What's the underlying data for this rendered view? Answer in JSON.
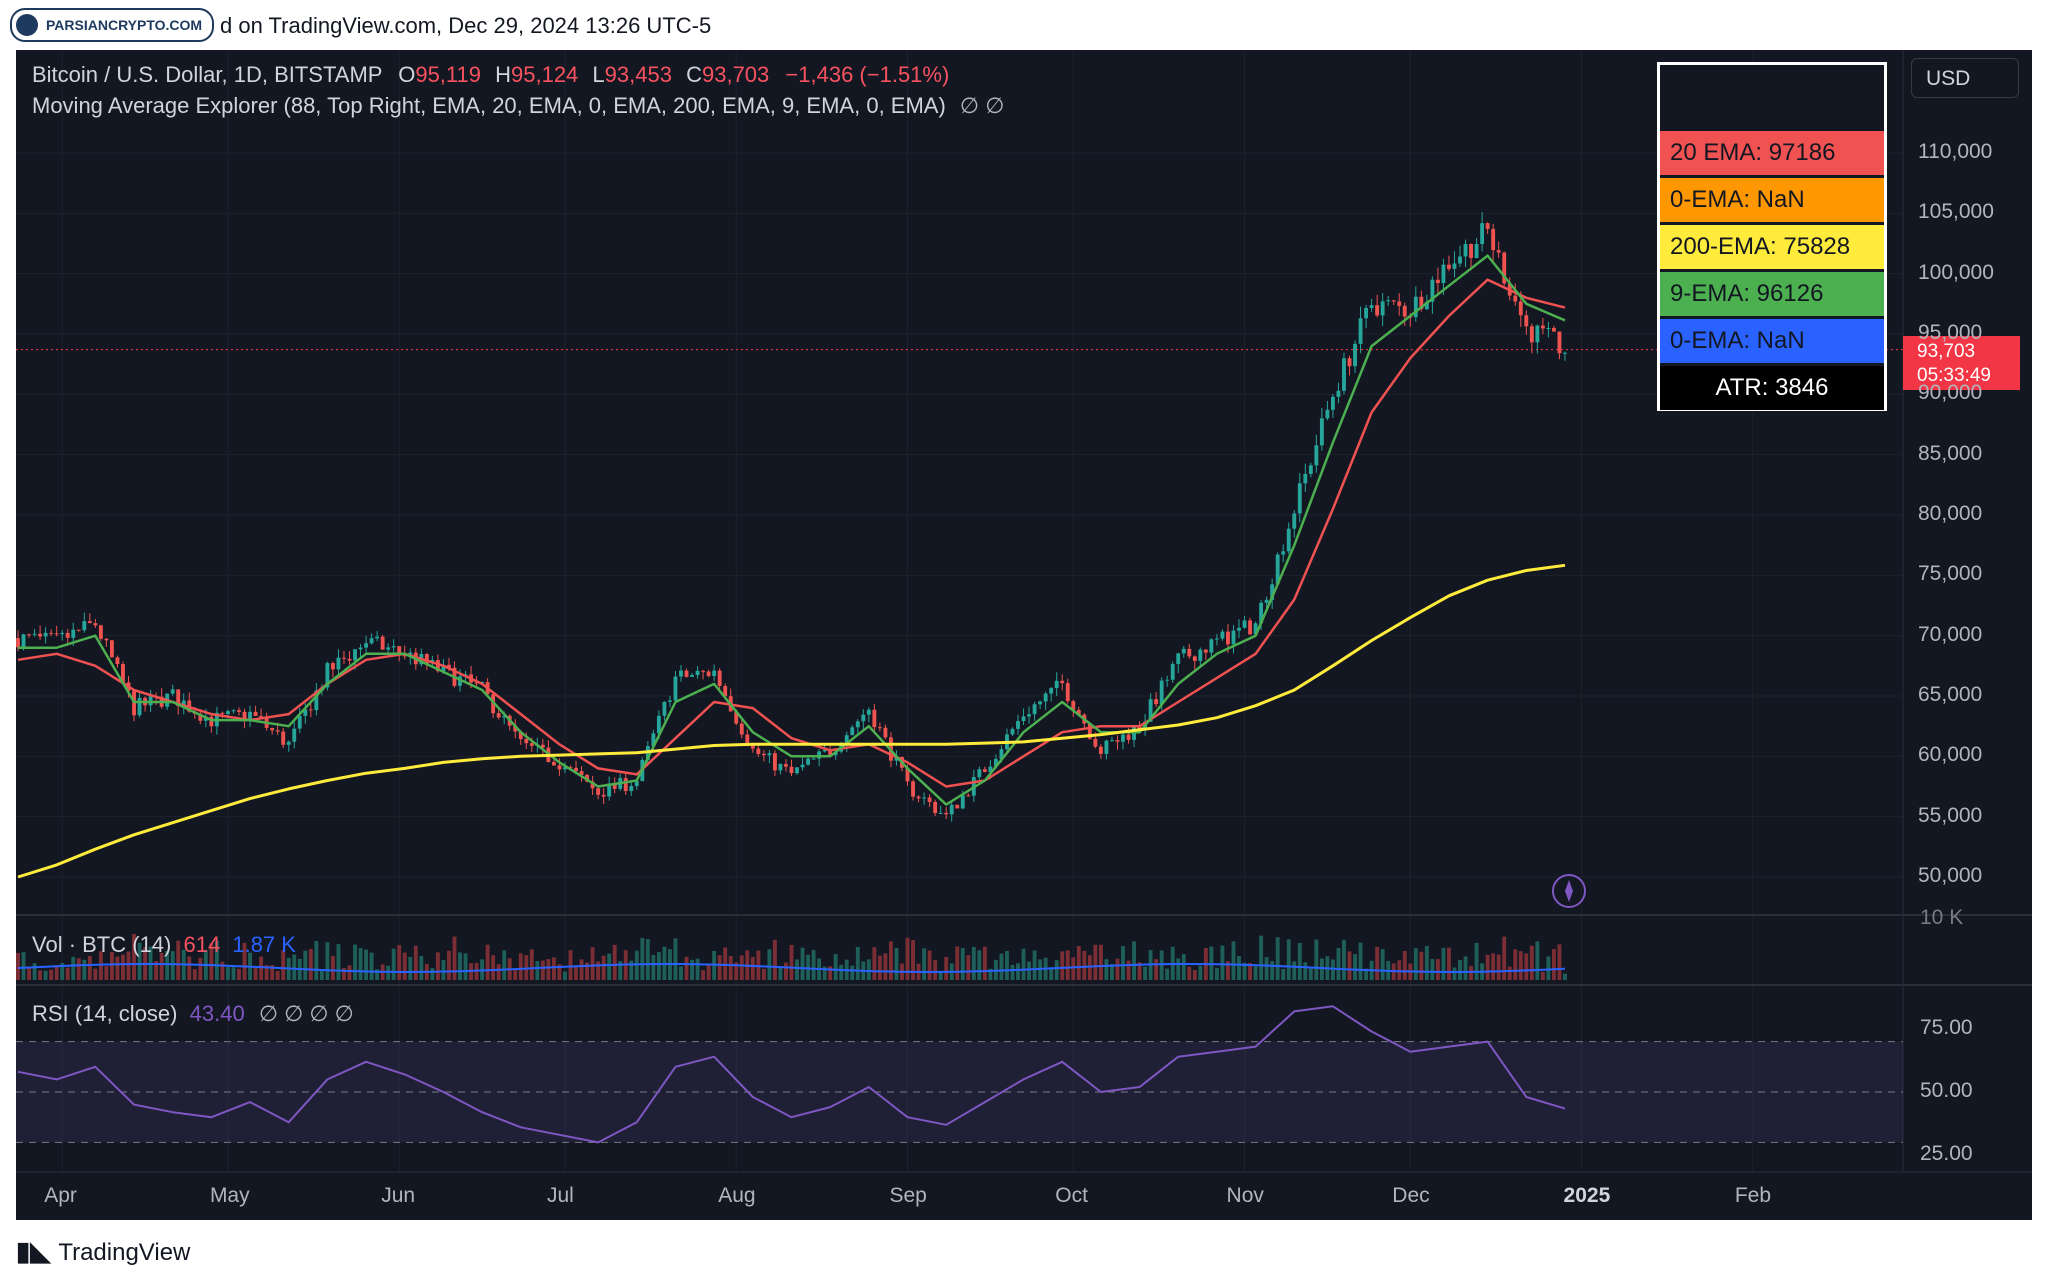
{
  "header": {
    "logo_text": "PARSIANCRYPTO.COM",
    "published_text": "d on TradingView.com, Dec 29, 2024 13:26 UTC-5"
  },
  "legend": {
    "symbol": "Bitcoin / U.S. Dollar, 1D, BITSTAMP",
    "o_label": "O",
    "o_value": "95,119",
    "h_label": "H",
    "h_value": "95,124",
    "l_label": "L",
    "l_value": "93,453",
    "c_label": "C",
    "c_value": "93,703",
    "change": "−1,436 (−1.51%)",
    "indicator": "Moving Average Explorer (88, Top Right, EMA, 20, EMA, 0, EMA, 200, EMA, 9, EMA, 0, EMA)",
    "indicator_icons": "∅ ∅"
  },
  "currency": "USD",
  "price_badge": {
    "price": "93,703",
    "countdown": "05:33:49"
  },
  "ma_table": {
    "rows": [
      {
        "label": "20 EMA: 97186",
        "color": "#f05252"
      },
      {
        "label": "0-EMA: NaN",
        "color": "#ff9800"
      },
      {
        "label": "200-EMA: 75828",
        "color": "#ffeb3b"
      },
      {
        "label": "9-EMA: 96126",
        "color": "#4caf50"
      },
      {
        "label": "0-EMA: NaN",
        "color": "#2962ff"
      },
      {
        "label": "ATR: 3846",
        "color": "#000000"
      }
    ]
  },
  "volume_legend": {
    "label": "Vol · BTC (14)",
    "v1": "614",
    "v2": "1.87 K",
    "axis_label": "10 K"
  },
  "rsi_legend": {
    "label": "RSI (14, close)",
    "value": "43.40",
    "icons": "∅ ∅ ∅ ∅"
  },
  "footer": {
    "brand": "TradingView"
  },
  "colors": {
    "background": "#131722",
    "up": "#26a69a",
    "down": "#ef5350",
    "ema20": "#f05252",
    "ema9": "#4caf50",
    "ema200": "#ffeb3b",
    "rsi": "#7e57c2"
  },
  "chart_data": [
    {
      "type": "candlestick",
      "title": "Bitcoin / U.S. Dollar, 1D, BITSTAMP",
      "x_ticks": [
        "Apr",
        "May",
        "Jun",
        "Jul",
        "Aug",
        "Sep",
        "Oct",
        "Nov",
        "Dec",
        "2025",
        "Feb"
      ],
      "y_ticks": [
        "110,000",
        "105,000",
        "100,000",
        "95,000",
        "90,000",
        "85,000",
        "80,000",
        "75,000",
        "70,000",
        "65,000",
        "60,000",
        "55,000",
        "50,000"
      ],
      "ylim": [
        47000,
        114000
      ],
      "weekly_closes": {
        "dates": [
          "2024-03-24",
          "2024-03-31",
          "2024-04-07",
          "2024-04-14",
          "2024-04-21",
          "2024-04-28",
          "2024-05-05",
          "2024-05-12",
          "2024-05-19",
          "2024-05-26",
          "2024-06-02",
          "2024-06-09",
          "2024-06-16",
          "2024-06-23",
          "2024-06-30",
          "2024-07-07",
          "2024-07-14",
          "2024-07-21",
          "2024-07-28",
          "2024-08-04",
          "2024-08-11",
          "2024-08-18",
          "2024-08-25",
          "2024-09-01",
          "2024-09-08",
          "2024-09-15",
          "2024-09-22",
          "2024-09-29",
          "2024-10-06",
          "2024-10-13",
          "2024-10-20",
          "2024-10-27",
          "2024-11-03",
          "2024-11-10",
          "2024-11-17",
          "2024-11-24",
          "2024-12-01",
          "2024-12-08",
          "2024-12-15",
          "2024-12-22",
          "2024-12-29"
        ],
        "values": [
          69800,
          69500,
          71000,
          64000,
          65000,
          63000,
          63500,
          61000,
          67000,
          69500,
          68500,
          67000,
          65500,
          61000,
          59500,
          57000,
          58000,
          66500,
          67000,
          60500,
          58500,
          60500,
          64000,
          57500,
          55000,
          59000,
          63500,
          66000,
          60500,
          62500,
          68000,
          69500,
          71000,
          80500,
          90000,
          97500,
          97000,
          101000,
          103500,
          95500,
          93703
        ]
      },
      "series": [
        {
          "name": "20 EMA",
          "values": [
            68000,
            68500,
            67500,
            65500,
            64500,
            63500,
            63000,
            63500,
            66000,
            68000,
            68500,
            67500,
            66000,
            63500,
            61000,
            59000,
            58500,
            61500,
            64500,
            64000,
            61500,
            60500,
            61000,
            59500,
            57500,
            58000,
            60000,
            62000,
            62500,
            62500,
            64500,
            66500,
            68500,
            73000,
            80500,
            88500,
            93000,
            96500,
            99500,
            98000,
            97186
          ]
        },
        {
          "name": "9-EMA",
          "values": [
            69000,
            69000,
            70000,
            64500,
            64500,
            63000,
            63000,
            62500,
            66000,
            68500,
            68500,
            67000,
            65500,
            62000,
            59500,
            57500,
            58000,
            64500,
            66000,
            62000,
            60000,
            60000,
            62500,
            59000,
            56000,
            58000,
            62000,
            64500,
            62000,
            62000,
            66000,
            68500,
            70000,
            77500,
            86000,
            94000,
            96500,
            99000,
            101500,
            97500,
            96126
          ]
        },
        {
          "name": "200-EMA",
          "values": [
            50000,
            51000,
            52300,
            53500,
            54500,
            55500,
            56500,
            57300,
            58000,
            58600,
            59000,
            59500,
            59800,
            60000,
            60100,
            60200,
            60300,
            60600,
            60900,
            61000,
            61000,
            61000,
            61000,
            61000,
            61000,
            61100,
            61200,
            61500,
            61800,
            62200,
            62600,
            63200,
            64200,
            65500,
            67500,
            69600,
            71500,
            73300,
            74600,
            75400,
            75828
          ]
        }
      ]
    },
    {
      "type": "bar",
      "title": "Vol · BTC (14)"
    },
    {
      "type": "line",
      "title": "RSI (14, close)",
      "y_ticks": [
        "75.00",
        "50.00",
        "25.00"
      ],
      "ylim": [
        18,
        90
      ],
      "bands": [
        70,
        50,
        30
      ],
      "x": [
        "2024-03-24",
        "2024-03-31",
        "2024-04-07",
        "2024-04-14",
        "2024-04-21",
        "2024-04-28",
        "2024-05-05",
        "2024-05-12",
        "2024-05-19",
        "2024-05-26",
        "2024-06-02",
        "2024-06-09",
        "2024-06-16",
        "2024-06-23",
        "2024-06-30",
        "2024-07-07",
        "2024-07-14",
        "2024-07-21",
        "2024-07-28",
        "2024-08-04",
        "2024-08-11",
        "2024-08-18",
        "2024-08-25",
        "2024-09-01",
        "2024-09-08",
        "2024-09-15",
        "2024-09-22",
        "2024-09-29",
        "2024-10-06",
        "2024-10-13",
        "2024-10-20",
        "2024-10-27",
        "2024-11-03",
        "2024-11-10",
        "2024-11-17",
        "2024-11-24",
        "2024-12-01",
        "2024-12-08",
        "2024-12-15",
        "2024-12-22",
        "2024-12-29"
      ],
      "values": [
        58,
        55,
        60,
        45,
        42,
        40,
        46,
        38,
        55,
        62,
        57,
        50,
        42,
        36,
        33,
        30,
        38,
        60,
        64,
        48,
        40,
        44,
        52,
        40,
        37,
        46,
        55,
        62,
        50,
        52,
        64,
        66,
        68,
        82,
        84,
        74,
        66,
        68,
        70,
        48,
        43.4
      ]
    }
  ]
}
